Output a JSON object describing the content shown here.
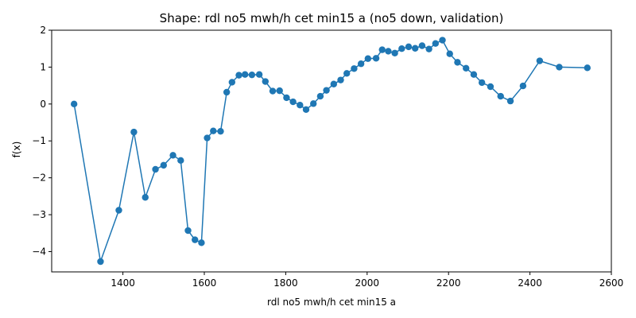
{
  "chart_data": {
    "type": "line",
    "title": "Shape: rdl no5 mwh/h cet min15 a (no5 down, validation)",
    "xlabel": "rdl no5 mwh/h cet min15 a",
    "ylabel": "f(x)",
    "xlim": [
      1225,
      2600
    ],
    "ylim": [
      -4.55,
      2.0
    ],
    "xticks": [
      1400,
      1600,
      1800,
      2000,
      2200,
      2400,
      2600
    ],
    "yticks": [
      -4,
      -3,
      -2,
      -1,
      0,
      1,
      2
    ],
    "xtick_labels": [
      "1400",
      "1600",
      "1800",
      "2000",
      "2200",
      "2400",
      "2600"
    ],
    "ytick_labels": [
      "−4",
      "−3",
      "−2",
      "−1",
      "0",
      "1",
      "2"
    ],
    "grid": false,
    "markers": true,
    "series": [
      {
        "color": "#1f77b4",
        "x": [
          1280,
          1345,
          1390,
          1427,
          1455,
          1480,
          1500,
          1523,
          1542,
          1560,
          1577,
          1593,
          1607,
          1622,
          1640,
          1655,
          1668,
          1685,
          1700,
          1717,
          1735,
          1750,
          1768,
          1785,
          1802,
          1818,
          1835,
          1850,
          1868,
          1885,
          1900,
          1918,
          1935,
          1950,
          1968,
          1985,
          2002,
          2022,
          2037,
          2052,
          2068,
          2085,
          2102,
          2118,
          2135,
          2152,
          2168,
          2185,
          2203,
          2222,
          2243,
          2262,
          2282,
          2303,
          2328,
          2352,
          2383,
          2424,
          2472,
          2541
        ],
        "y": [
          0.0,
          -4.27,
          -2.88,
          -0.76,
          -2.53,
          -1.77,
          -1.66,
          -1.39,
          -1.53,
          -3.43,
          -3.68,
          -3.76,
          -0.92,
          -0.73,
          -0.74,
          0.32,
          0.59,
          0.78,
          0.8,
          0.79,
          0.8,
          0.61,
          0.35,
          0.36,
          0.17,
          0.06,
          -0.03,
          -0.15,
          0.01,
          0.21,
          0.37,
          0.54,
          0.65,
          0.83,
          0.96,
          1.09,
          1.23,
          1.24,
          1.47,
          1.43,
          1.38,
          1.5,
          1.55,
          1.51,
          1.58,
          1.49,
          1.64,
          1.73,
          1.36,
          1.13,
          0.97,
          0.8,
          0.58,
          0.47,
          0.21,
          0.08,
          0.49,
          1.17,
          1.0,
          0.98
        ]
      }
    ]
  }
}
